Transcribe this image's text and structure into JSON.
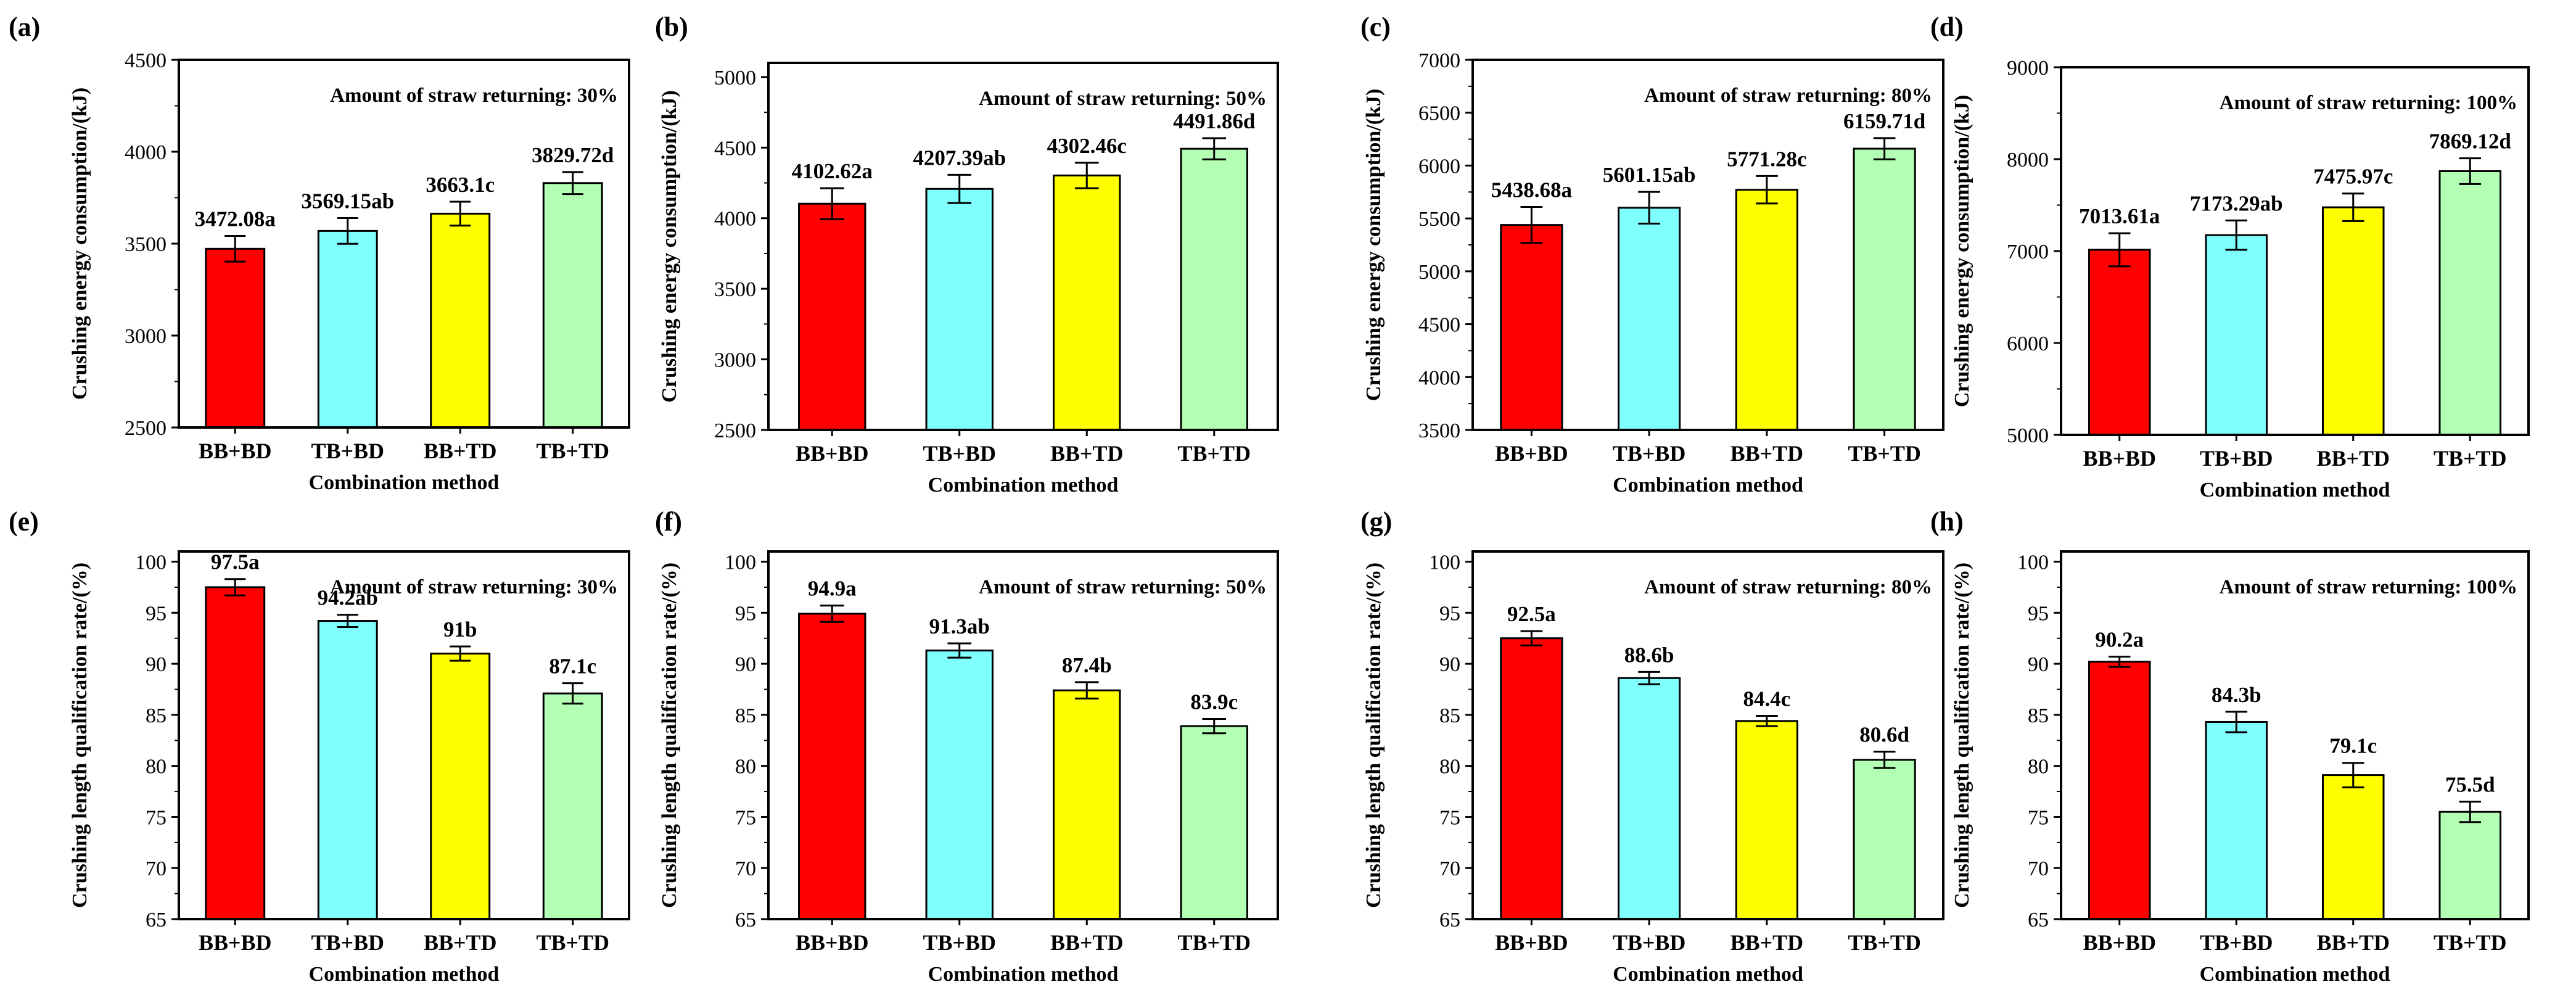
{
  "figure": {
    "categories": [
      "BB+BD",
      "TB+BD",
      "BB+TD",
      "TB+TD"
    ],
    "bar_colors": [
      "#ff0000",
      "#80ffff",
      "#ffff00",
      "#b3ffb3"
    ],
    "xlabel": "Combination method"
  },
  "chart_data": [
    {
      "panel": "(a)",
      "type": "bar",
      "title": "Amount of straw returning: 30%",
      "xlabel": "Combination method",
      "ylabel": "Crushing energy consumption/(kJ)",
      "categories": [
        "BB+BD",
        "TB+BD",
        "BB+TD",
        "TB+TD"
      ],
      "values": [
        3472.08,
        3569.15,
        3663.1,
        3829.72
      ],
      "errors": [
        70,
        70,
        65,
        60
      ],
      "data_labels": [
        "3472.08a",
        "3569.15ab",
        "3663.1c",
        "3829.72d"
      ],
      "ylim": [
        2500,
        4500
      ],
      "yticks": [
        2500,
        3000,
        3500,
        4000,
        4500
      ]
    },
    {
      "panel": "(b)",
      "type": "bar",
      "title": "Amount of straw returning: 50%",
      "xlabel": "Combination method",
      "ylabel": "Crushing energy consumption/(kJ)",
      "categories": [
        "BB+BD",
        "TB+BD",
        "BB+TD",
        "TB+TD"
      ],
      "values": [
        4102.62,
        4207.39,
        4302.46,
        4491.86
      ],
      "errors": [
        110,
        100,
        90,
        75
      ],
      "data_labels": [
        "4102.62a",
        "4207.39ab",
        "4302.46c",
        "4491.86d"
      ],
      "ylim": [
        2500,
        5100
      ],
      "yticks": [
        2500,
        3000,
        3500,
        4000,
        4500,
        5000
      ]
    },
    {
      "panel": "(c)",
      "type": "bar",
      "title": "Amount of straw returning: 80%",
      "xlabel": "Combination method",
      "ylabel": "Crushing energy consumption/(kJ)",
      "categories": [
        "BB+BD",
        "TB+BD",
        "BB+TD",
        "TB+TD"
      ],
      "values": [
        5438.68,
        5601.15,
        5771.28,
        6159.71
      ],
      "errors": [
        170,
        150,
        130,
        100
      ],
      "data_labels": [
        "5438.68a",
        "5601.15ab",
        "5771.28c",
        "6159.71d"
      ],
      "ylim": [
        3500,
        7000
      ],
      "yticks": [
        3500,
        4000,
        4500,
        5000,
        5500,
        6000,
        6500,
        7000
      ]
    },
    {
      "panel": "(d)",
      "type": "bar",
      "title": "Amount of straw returning: 100%",
      "xlabel": "Combination method",
      "ylabel": "Crushing energy consumption/(kJ)",
      "categories": [
        "BB+BD",
        "TB+BD",
        "BB+TD",
        "TB+TD"
      ],
      "values": [
        7013.61,
        7173.29,
        7475.97,
        7869.12
      ],
      "errors": [
        180,
        160,
        150,
        140
      ],
      "data_labels": [
        "7013.61a",
        "7173.29ab",
        "7475.97c",
        "7869.12d"
      ],
      "ylim": [
        5000,
        9000
      ],
      "yticks": [
        5000,
        6000,
        7000,
        8000,
        9000
      ]
    },
    {
      "panel": "(e)",
      "type": "bar",
      "title": "Amount of straw returning: 30%",
      "xlabel": "Combination method",
      "ylabel": "Crushing length qualification rate/(%)",
      "categories": [
        "BB+BD",
        "TB+BD",
        "BB+TD",
        "TB+TD"
      ],
      "values": [
        97.5,
        94.2,
        91,
        87.1
      ],
      "errors": [
        0.8,
        0.6,
        0.7,
        1.0
      ],
      "data_labels": [
        "97.5a",
        "94.2ab",
        "91b",
        "87.1c"
      ],
      "ylim": [
        65,
        101
      ],
      "yticks": [
        65,
        70,
        75,
        80,
        85,
        90,
        95,
        100
      ]
    },
    {
      "panel": "(f)",
      "type": "bar",
      "title": "Amount of straw returning: 50%",
      "xlabel": "Combination method",
      "ylabel": "Crushing length qualification rate/(%)",
      "categories": [
        "BB+BD",
        "TB+BD",
        "BB+TD",
        "TB+TD"
      ],
      "values": [
        94.9,
        91.3,
        87.4,
        83.9
      ],
      "errors": [
        0.8,
        0.7,
        0.8,
        0.7
      ],
      "data_labels": [
        "94.9a",
        "91.3ab",
        "87.4b",
        "83.9c"
      ],
      "ylim": [
        65,
        101
      ],
      "yticks": [
        65,
        70,
        75,
        80,
        85,
        90,
        95,
        100
      ]
    },
    {
      "panel": "(g)",
      "type": "bar",
      "title": "Amount of straw returning: 80%",
      "xlabel": "Combination method",
      "ylabel": "Crushing length qualification rate/(%)",
      "categories": [
        "BB+BD",
        "TB+BD",
        "BB+TD",
        "TB+TD"
      ],
      "values": [
        92.5,
        88.6,
        84.4,
        80.6
      ],
      "errors": [
        0.7,
        0.6,
        0.5,
        0.8
      ],
      "data_labels": [
        "92.5a",
        "88.6b",
        "84.4c",
        "80.6d"
      ],
      "ylim": [
        65,
        101
      ],
      "yticks": [
        65,
        70,
        75,
        80,
        85,
        90,
        95,
        100
      ]
    },
    {
      "panel": "(h)",
      "type": "bar",
      "title": "Amount of straw returning: 100%",
      "xlabel": "Combination method",
      "ylabel": "Crushing length qualification rate/(%)",
      "categories": [
        "BB+BD",
        "TB+BD",
        "BB+TD",
        "TB+TD"
      ],
      "values": [
        90.2,
        84.3,
        79.1,
        75.5
      ],
      "errors": [
        0.5,
        1.0,
        1.2,
        1.0
      ],
      "data_labels": [
        "90.2a",
        "84.3b",
        "79.1c",
        "75.5d"
      ],
      "ylim": [
        65,
        101
      ],
      "yticks": [
        65,
        70,
        75,
        80,
        85,
        90,
        95,
        100
      ]
    }
  ]
}
